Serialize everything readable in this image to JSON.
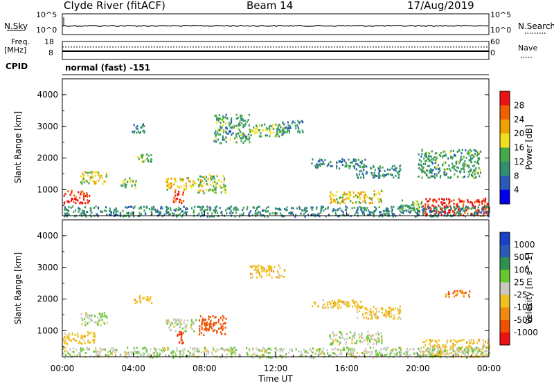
{
  "header": {
    "station": "Clyde River (fitACF)",
    "beam": "Beam 14",
    "date": "17/Aug/2019"
  },
  "sky_panel": {
    "left_label": "N.Sky",
    "left_ticks": [
      "10^5",
      "10^0"
    ],
    "right_ticks": [
      "10^5",
      "10^0"
    ],
    "right_label": "N.Search"
  },
  "freq_panel": {
    "left_label_line1": "Freq.",
    "left_label_line2": "[MHz]",
    "left_ticks": [
      "18",
      "8"
    ],
    "right_ticks": [
      "60",
      "0"
    ],
    "right_label": "Nave"
  },
  "cpid": {
    "label": "CPID",
    "value": "normal (fast) -151"
  },
  "colors": {
    "power_scale": [
      "#0000ee",
      "#2a5ab8",
      "#2f8f70",
      "#46a84a",
      "#f0e020",
      "#f0a000",
      "#f06000",
      "#ee1111"
    ],
    "velocity_scale": [
      "#ee1111",
      "#f05000",
      "#f08a10",
      "#f0c020",
      "#c8c8c0",
      "#66c830",
      "#2f9050",
      "#2a5ab8",
      "#1b3fc8"
    ]
  },
  "chart_data": [
    {
      "type": "heatmap",
      "title": "Power",
      "ylabel": "Slant Range [km]",
      "xlabel": "",
      "y_ticks": [
        "1000",
        "2000",
        "3000",
        "4000"
      ],
      "ylim": [
        180,
        4500
      ],
      "colorbar_label": "Power [dB]",
      "colorbar_ticks": [
        "4",
        "8",
        "12",
        "16",
        "20",
        "24",
        "28"
      ],
      "colorbar_range": [
        0,
        32
      ],
      "x_unit": "hours UT",
      "regions": [
        {
          "t": [
            0.0,
            1.5
          ],
          "r": [
            600,
            1000
          ],
          "level": 30
        },
        {
          "t": [
            1.0,
            2.5
          ],
          "r": [
            1200,
            1600
          ],
          "level": 18
        },
        {
          "t": [
            3.2,
            4.2
          ],
          "r": [
            1100,
            1400
          ],
          "level": 14
        },
        {
          "t": [
            4.0,
            5.0
          ],
          "r": [
            1900,
            2150
          ],
          "level": 14
        },
        {
          "t": [
            3.8,
            4.6
          ],
          "r": [
            2800,
            3100
          ],
          "level": 10
        },
        {
          "t": [
            5.8,
            7.5
          ],
          "r": [
            1000,
            1400
          ],
          "level": 20
        },
        {
          "t": [
            6.2,
            6.8
          ],
          "r": [
            600,
            1000
          ],
          "level": 28
        },
        {
          "t": [
            7.6,
            9.2
          ],
          "r": [
            900,
            1500
          ],
          "level": 16
        },
        {
          "t": [
            8.5,
            10.5
          ],
          "r": [
            2500,
            3400
          ],
          "level": 12
        },
        {
          "t": [
            10.5,
            12.5
          ],
          "r": [
            2700,
            3100
          ],
          "level": 14
        },
        {
          "t": [
            12.0,
            13.5
          ],
          "r": [
            2800,
            3200
          ],
          "level": 10
        },
        {
          "t": [
            14.0,
            17.0
          ],
          "r": [
            1700,
            2000
          ],
          "level": 10
        },
        {
          "t": [
            16.5,
            19.0
          ],
          "r": [
            1400,
            1800
          ],
          "level": 10
        },
        {
          "t": [
            15.0,
            18.0
          ],
          "r": [
            600,
            1000
          ],
          "level": 18
        },
        {
          "t": [
            19.0,
            20.2
          ],
          "r": [
            300,
            700
          ],
          "level": 14
        },
        {
          "t": [
            20.2,
            24.0
          ],
          "r": [
            200,
            750
          ],
          "level": 30
        },
        {
          "t": [
            20.0,
            23.5
          ],
          "r": [
            1400,
            2300
          ],
          "level": 12
        },
        {
          "t": [
            0.0,
            24.0
          ],
          "r": [
            180,
            500
          ],
          "level": 10
        }
      ]
    },
    {
      "type": "heatmap",
      "title": "Velocity",
      "ylabel": "Slant Range [km]",
      "xlabel": "Time UT",
      "x_ticks": [
        "00:00",
        "04:00",
        "08:00",
        "12:00",
        "16:00",
        "20:00",
        "00:00"
      ],
      "xlim": [
        0,
        24
      ],
      "y_ticks": [
        "1000",
        "2000",
        "3000",
        "4000"
      ],
      "ylim": [
        180,
        4500
      ],
      "colorbar_label": "Velocity [m s^-1]",
      "colorbar_ticks": [
        "1000",
        "500",
        "100",
        "25",
        "-25",
        "-100",
        "-500",
        "-1000"
      ],
      "colorbar_range": [
        -1000,
        1000
      ],
      "x_unit": "hours UT",
      "regions": [
        {
          "t": [
            0.0,
            1.8
          ],
          "r": [
            600,
            1000
          ],
          "level": 0
        },
        {
          "t": [
            1.0,
            2.5
          ],
          "r": [
            1200,
            1600
          ],
          "level": 80
        },
        {
          "t": [
            4.0,
            5.0
          ],
          "r": [
            1900,
            2150
          ],
          "level": 0
        },
        {
          "t": [
            5.8,
            7.5
          ],
          "r": [
            1000,
            1400
          ],
          "level": 80
        },
        {
          "t": [
            6.3,
            6.8
          ],
          "r": [
            600,
            1000
          ],
          "level": -400
        },
        {
          "t": [
            7.6,
            9.2
          ],
          "r": [
            900,
            1500
          ],
          "level": -300
        },
        {
          "t": [
            10.5,
            12.5
          ],
          "r": [
            2700,
            3100
          ],
          "level": 0
        },
        {
          "t": [
            14.0,
            17.0
          ],
          "r": [
            1700,
            2000
          ],
          "level": 0
        },
        {
          "t": [
            16.5,
            19.0
          ],
          "r": [
            1400,
            1800
          ],
          "level": 0
        },
        {
          "t": [
            15.0,
            18.0
          ],
          "r": [
            600,
            1000
          ],
          "level": 80
        },
        {
          "t": [
            20.2,
            24.0
          ],
          "r": [
            200,
            750
          ],
          "level": 0
        },
        {
          "t": [
            21.5,
            23.0
          ],
          "r": [
            2100,
            2300
          ],
          "level": -100
        },
        {
          "t": [
            0.0,
            24.0
          ],
          "r": [
            180,
            500
          ],
          "level": 80
        }
      ]
    }
  ]
}
